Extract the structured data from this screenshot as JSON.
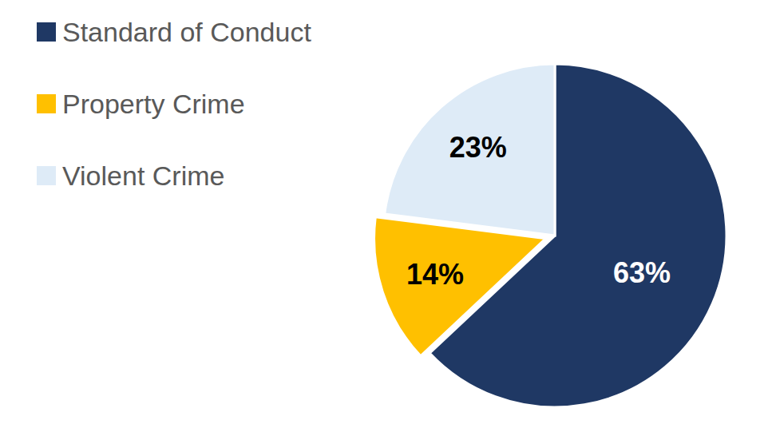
{
  "chart_data": {
    "type": "pie",
    "categories": [
      "Standard of Conduct",
      "Property Crime",
      "Violent Crime"
    ],
    "values": [
      63,
      14,
      23
    ],
    "value_labels": [
      "63%",
      "14%",
      "23%"
    ],
    "colors": [
      "#1f3864",
      "#ffc000",
      "#deebf7"
    ],
    "data_labels": true,
    "legend": "upper left"
  }
}
